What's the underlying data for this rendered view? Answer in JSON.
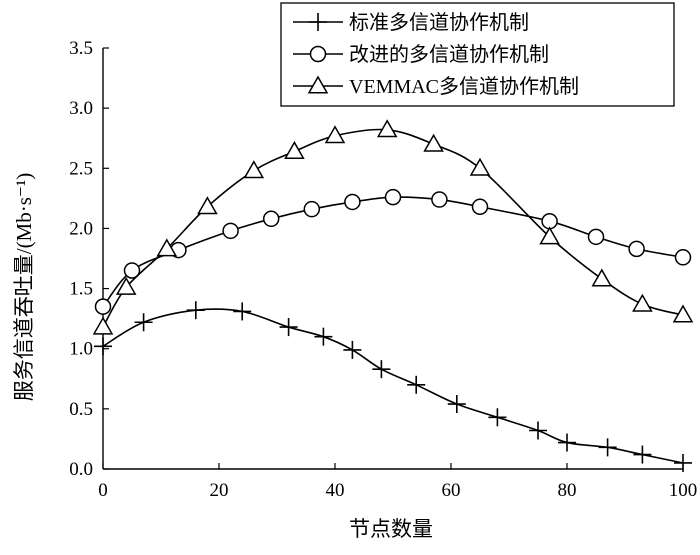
{
  "chart_data": {
    "type": "line",
    "title": "",
    "xlabel": "节点数量",
    "ylabel": "服务信道吞吐量/(Mb·s⁻¹)",
    "xlim": [
      0,
      100
    ],
    "ylim": [
      0,
      3.5
    ],
    "xticks": [
      0,
      20,
      40,
      60,
      80,
      100
    ],
    "yticks": [
      0.0,
      0.5,
      1.0,
      1.5,
      2.0,
      2.5,
      3.0,
      3.5
    ],
    "xtick_labels": [
      "0",
      "20",
      "40",
      "60",
      "80",
      "100"
    ],
    "ytick_labels": [
      "0.0",
      "0.5",
      "1.0",
      "1.5",
      "2.0",
      "2.5",
      "3.0",
      "3.5"
    ],
    "grid": false,
    "legend_position": "top-right",
    "series": [
      {
        "name": "标准多信道协作机制",
        "marker": "plus",
        "x": [
          0,
          7,
          16,
          24,
          32,
          38,
          43,
          48,
          54,
          61,
          68,
          75,
          80,
          87,
          93,
          100
        ],
        "y": [
          1.02,
          1.22,
          1.32,
          1.31,
          1.18,
          1.1,
          0.99,
          0.83,
          0.7,
          0.54,
          0.43,
          0.32,
          0.22,
          0.18,
          0.12,
          0.05
        ]
      },
      {
        "name": "改进的多信道协作机制",
        "marker": "circle",
        "x": [
          0,
          5,
          13,
          22,
          29,
          36,
          43,
          50,
          58,
          65,
          77,
          85,
          92,
          100
        ],
        "y": [
          1.35,
          1.65,
          1.82,
          1.98,
          2.08,
          2.16,
          2.22,
          2.26,
          2.24,
          2.18,
          2.06,
          1.93,
          1.83,
          1.76
        ]
      },
      {
        "name": "VEMMAC多信道协作机制",
        "marker": "triangle",
        "x": [
          0,
          4,
          11,
          18,
          26,
          33,
          40,
          49,
          57,
          65,
          77,
          86,
          93,
          100
        ],
        "y": [
          1.18,
          1.51,
          1.83,
          2.18,
          2.48,
          2.64,
          2.77,
          2.82,
          2.7,
          2.5,
          1.93,
          1.58,
          1.37,
          1.28
        ]
      }
    ]
  },
  "colors": {
    "line": "#000000",
    "background": "#ffffff"
  }
}
